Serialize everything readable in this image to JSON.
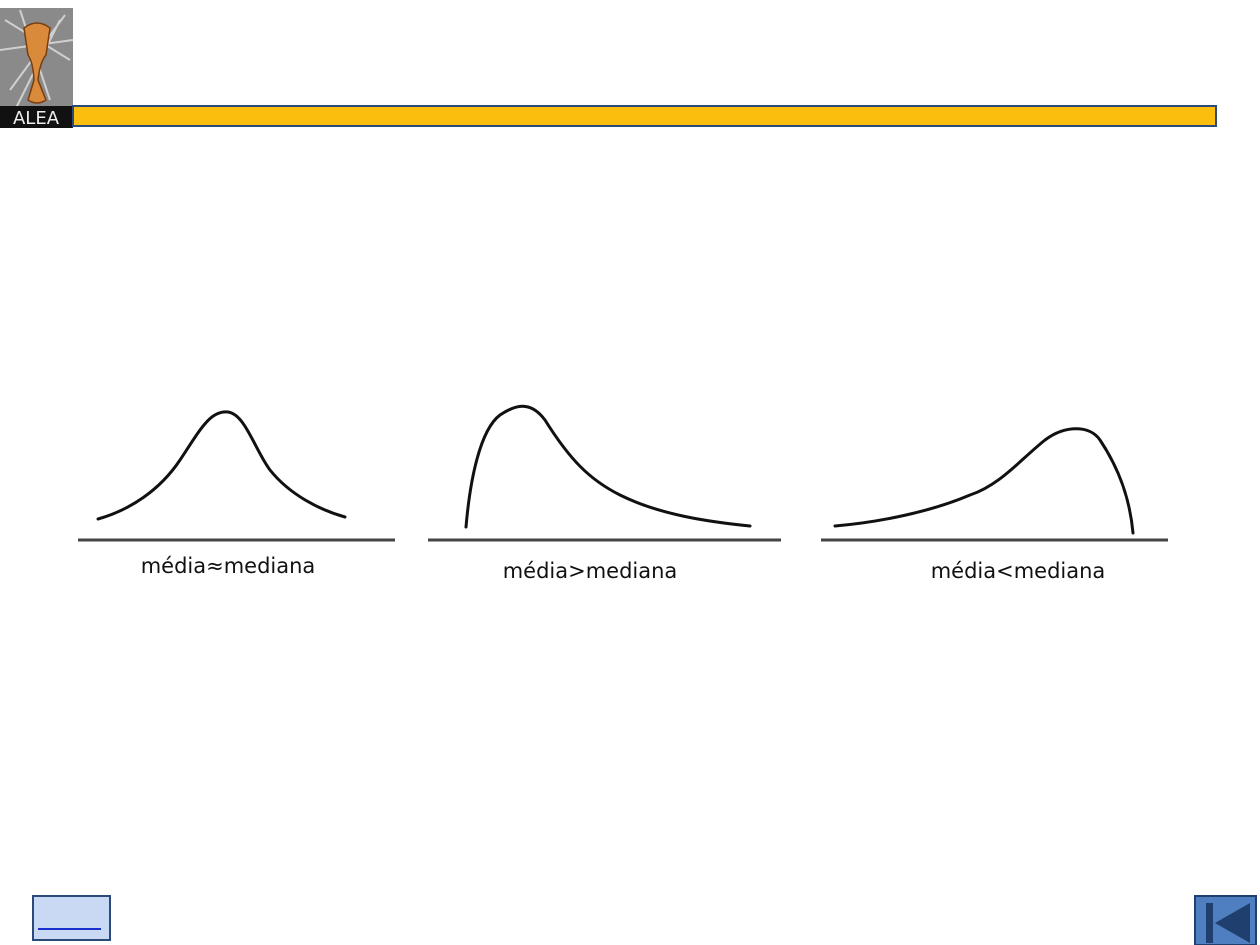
{
  "logo": {
    "text": "ALEA"
  },
  "figures": [
    {
      "label": "média≈mediana"
    },
    {
      "label": "média>mediana"
    },
    {
      "label": "média<mediana"
    }
  ]
}
